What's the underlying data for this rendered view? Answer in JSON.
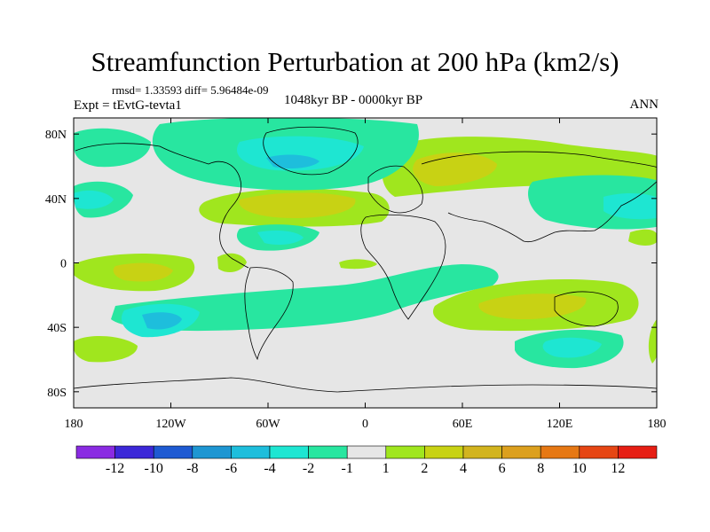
{
  "header": {
    "title": "Streamfunction Perturbation at 200 hPa (km2/s)",
    "stats": "rmsd= 1.33593  diff= 5.96484e-09",
    "experiment": "Expt = tEvtG-tevta1",
    "period": "1048kyr BP - 0000kyr BP",
    "season": "ANN"
  },
  "map": {
    "lat_ticks": [
      {
        "value": 80,
        "label": "80N"
      },
      {
        "value": 40,
        "label": "40N"
      },
      {
        "value": 0,
        "label": "0"
      },
      {
        "value": -40,
        "label": "40S"
      },
      {
        "value": -80,
        "label": "80S"
      }
    ],
    "lon_ticks": [
      {
        "value": -180,
        "label": "180"
      },
      {
        "value": -120,
        "label": "120W"
      },
      {
        "value": -60,
        "label": "60W"
      },
      {
        "value": 0,
        "label": "0"
      },
      {
        "value": 60,
        "label": "60E"
      },
      {
        "value": 120,
        "label": "120E"
      },
      {
        "value": 180,
        "label": "180"
      }
    ],
    "background_color": "#e6e6e6"
  },
  "colorbar": {
    "colors": [
      "#8a2be2",
      "#3c28d8",
      "#1e5ad2",
      "#1e96d2",
      "#1ebedc",
      "#1ee6d2",
      "#28e6a0",
      "#e6e6e6",
      "#a0e61e",
      "#c8d214",
      "#d2b41e",
      "#dca01e",
      "#e67814",
      "#e64614",
      "#e61e14"
    ],
    "labels": [
      "-12",
      "-10",
      "-8",
      "-6",
      "-4",
      "-2",
      "-1",
      "1",
      "2",
      "4",
      "6",
      "8",
      "10",
      "12"
    ]
  }
}
